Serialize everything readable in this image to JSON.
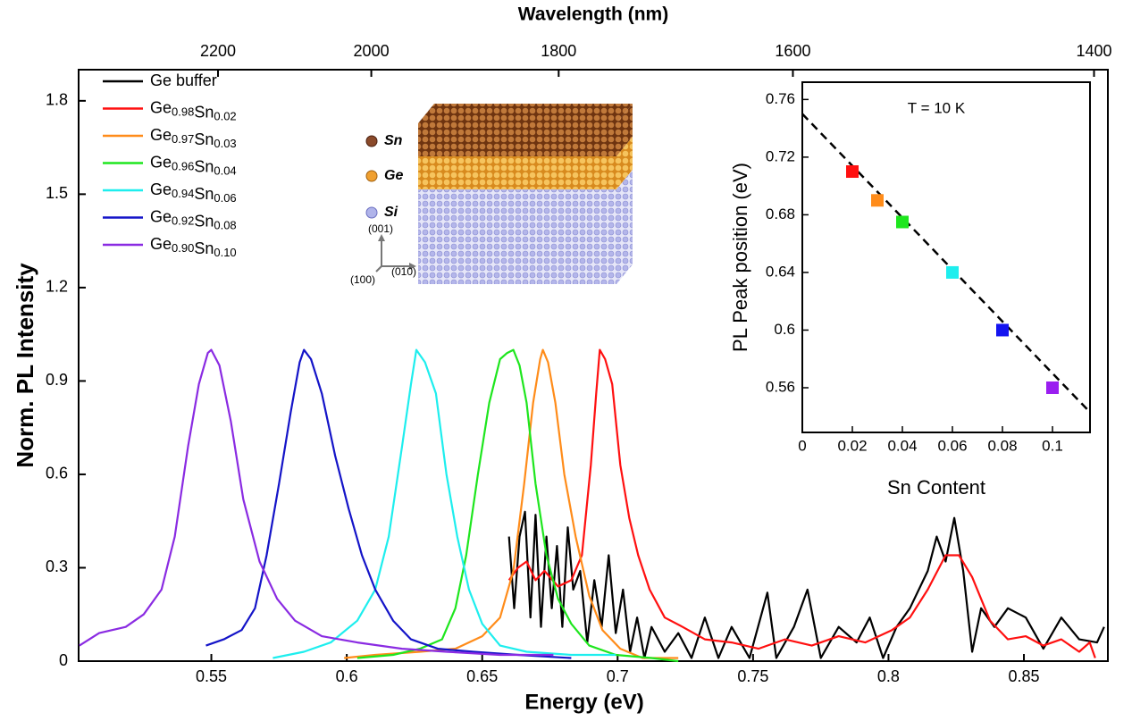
{
  "chart_data": [
    {
      "type": "line",
      "xlabel": "Energy (eV)",
      "ylabel": "Norm. PL Intensity",
      "x2label": "Wavelength (nm)",
      "xlim": [
        0.501,
        0.881
      ],
      "ylim": [
        0,
        1.9
      ],
      "xticks": [
        0.55,
        0.6,
        0.65,
        0.7,
        0.75,
        0.8,
        0.85
      ],
      "yticks": [
        0,
        0.3,
        0.6,
        0.9,
        1.2,
        1.5,
        1.8
      ],
      "x2lim": [
        2420,
        1392
      ],
      "x2scale": "reciprocal",
      "x2ticks": [
        2200,
        2000,
        1800,
        1600,
        1400
      ],
      "legend": "upper left",
      "series": [
        {
          "name": "Ge buffer",
          "color": "#000000",
          "x": [
            0.6599,
            0.6618,
            0.6638,
            0.6658,
            0.6678,
            0.6697,
            0.6717,
            0.6737,
            0.6757,
            0.6776,
            0.6796,
            0.6816,
            0.6836,
            0.6862,
            0.6888,
            0.6914,
            0.6941,
            0.6967,
            0.6993,
            0.702,
            0.7046,
            0.7072,
            0.7099,
            0.7125,
            0.7174,
            0.7224,
            0.7273,
            0.7322,
            0.7372,
            0.7421,
            0.7487,
            0.7553,
            0.7586,
            0.7651,
            0.7701,
            0.775,
            0.7816,
            0.7882,
            0.7931,
            0.798,
            0.803,
            0.8079,
            0.8145,
            0.8178,
            0.8211,
            0.8243,
            0.8276,
            0.8309,
            0.8342,
            0.8391,
            0.8441,
            0.8507,
            0.8572,
            0.8638,
            0.8704,
            0.877,
            0.8796
          ],
          "values": [
            0.4,
            0.17,
            0.4,
            0.48,
            0.14,
            0.47,
            0.11,
            0.4,
            0.17,
            0.37,
            0.11,
            0.43,
            0.23,
            0.29,
            0.06,
            0.26,
            0.11,
            0.34,
            0.09,
            0.23,
            0.03,
            0.14,
            0.01,
            0.11,
            0.03,
            0.09,
            0.01,
            0.14,
            0.01,
            0.11,
            0.01,
            0.22,
            0.01,
            0.11,
            0.23,
            0.01,
            0.11,
            0.06,
            0.14,
            0.01,
            0.11,
            0.17,
            0.29,
            0.4,
            0.32,
            0.46,
            0.29,
            0.03,
            0.17,
            0.11,
            0.17,
            0.14,
            0.04,
            0.14,
            0.07,
            0.06,
            0.11
          ]
        },
        {
          "name": "Ge0.98Sn0.02",
          "color": "#ff1010",
          "x": [
            0.6599,
            0.6632,
            0.6664,
            0.6697,
            0.673,
            0.678,
            0.6829,
            0.6868,
            0.6901,
            0.6921,
            0.6934,
            0.6954,
            0.698,
            0.701,
            0.7043,
            0.7076,
            0.7118,
            0.7174,
            0.724,
            0.7322,
            0.7421,
            0.752,
            0.7618,
            0.7717,
            0.7816,
            0.7914,
            0.8013,
            0.8079,
            0.8145,
            0.8211,
            0.826,
            0.8309,
            0.8375,
            0.8441,
            0.8507,
            0.8572,
            0.8638,
            0.8704,
            0.8743,
            0.8763
          ],
          "values": [
            0.26,
            0.3,
            0.32,
            0.26,
            0.29,
            0.24,
            0.26,
            0.34,
            0.63,
            0.86,
            1.0,
            0.97,
            0.89,
            0.63,
            0.46,
            0.34,
            0.23,
            0.14,
            0.11,
            0.07,
            0.06,
            0.04,
            0.07,
            0.05,
            0.08,
            0.06,
            0.1,
            0.14,
            0.23,
            0.34,
            0.34,
            0.27,
            0.13,
            0.07,
            0.08,
            0.05,
            0.07,
            0.03,
            0.06,
            0.01
          ]
        },
        {
          "name": "Ge0.97Sn0.03",
          "color": "#ff8c1a",
          "x": [
            0.599,
            0.6105,
            0.627,
            0.6401,
            0.65,
            0.6566,
            0.6615,
            0.6655,
            0.6688,
            0.6714,
            0.6724,
            0.6743,
            0.677,
            0.6803,
            0.6845,
            0.6895,
            0.6944,
            0.701,
            0.7092,
            0.7224
          ],
          "values": [
            0.01,
            0.02,
            0.03,
            0.04,
            0.08,
            0.14,
            0.29,
            0.57,
            0.83,
            0.97,
            1.0,
            0.96,
            0.83,
            0.6,
            0.4,
            0.21,
            0.1,
            0.04,
            0.01,
            0.01
          ]
        },
        {
          "name": "Ge0.96Sn0.04",
          "color": "#1ee61e",
          "x": [
            0.6039,
            0.6171,
            0.627,
            0.6352,
            0.6401,
            0.6441,
            0.6484,
            0.6526,
            0.6566,
            0.6592,
            0.6615,
            0.6638,
            0.6664,
            0.6697,
            0.6737,
            0.678,
            0.6829,
            0.6895,
            0.6993,
            0.7125,
            0.7224
          ],
          "values": [
            0.01,
            0.02,
            0.04,
            0.07,
            0.17,
            0.34,
            0.6,
            0.83,
            0.97,
            0.99,
            1.0,
            0.95,
            0.83,
            0.57,
            0.34,
            0.2,
            0.12,
            0.05,
            0.02,
            0.01,
            0.0
          ]
        },
        {
          "name": "Ge0.94Sn0.06",
          "color": "#1eeeee",
          "x": [
            0.5727,
            0.5842,
            0.5941,
            0.6039,
            0.6105,
            0.6155,
            0.6204,
            0.6237,
            0.6257,
            0.6289,
            0.6329,
            0.6368,
            0.6408,
            0.6451,
            0.65,
            0.6566,
            0.6664,
            0.6829,
            0.6993
          ],
          "values": [
            0.01,
            0.03,
            0.06,
            0.13,
            0.23,
            0.4,
            0.69,
            0.89,
            1.0,
            0.96,
            0.86,
            0.6,
            0.4,
            0.23,
            0.12,
            0.05,
            0.03,
            0.02,
            0.02
          ]
        },
        {
          "name": "Ge0.92Sn0.08",
          "color": "#1414c8",
          "x": [
            0.548,
            0.5546,
            0.5612,
            0.5661,
            0.5704,
            0.575,
            0.5793,
            0.5826,
            0.5842,
            0.5868,
            0.5908,
            0.5957,
            0.6007,
            0.6056,
            0.6105,
            0.6171,
            0.6237,
            0.6336,
            0.6467,
            0.6632,
            0.6829
          ],
          "values": [
            0.05,
            0.07,
            0.1,
            0.17,
            0.34,
            0.57,
            0.8,
            0.96,
            1.0,
            0.97,
            0.86,
            0.66,
            0.49,
            0.34,
            0.23,
            0.13,
            0.07,
            0.04,
            0.03,
            0.02,
            0.01
          ]
        },
        {
          "name": "Ge0.90Sn0.10",
          "color": "#8a2be2",
          "x": [
            0.5013,
            0.5086,
            0.5184,
            0.525,
            0.5316,
            0.5365,
            0.5414,
            0.5454,
            0.5487,
            0.55,
            0.553,
            0.5572,
            0.5618,
            0.5678,
            0.5743,
            0.5809,
            0.5908,
            0.6039,
            0.6204,
            0.6368,
            0.6566,
            0.6763
          ],
          "values": [
            0.05,
            0.09,
            0.11,
            0.15,
            0.23,
            0.4,
            0.69,
            0.89,
            0.99,
            1.0,
            0.95,
            0.77,
            0.52,
            0.32,
            0.2,
            0.13,
            0.08,
            0.06,
            0.04,
            0.03,
            0.02,
            0.02
          ]
        }
      ]
    },
    {
      "type": "scatter",
      "annotation": "T = 10 K",
      "xlabel": "Sn Content",
      "ylabel": "PL Peak position (eV)",
      "xlim": [
        0,
        0.115
      ],
      "ylim": [
        0.529,
        0.772
      ],
      "xticks": [
        0,
        0.02,
        0.04,
        0.06,
        0.08,
        0.1
      ],
      "yticks": [
        0.56,
        0.6,
        0.64,
        0.68,
        0.72,
        0.76
      ],
      "x": [
        0.02,
        0.03,
        0.04,
        0.06,
        0.08,
        0.1
      ],
      "values": [
        0.71,
        0.69,
        0.675,
        0.64,
        0.6,
        0.56
      ],
      "colors": [
        "#ff1010",
        "#ff8c1a",
        "#1ee61e",
        "#1eeeee",
        "#1414f0",
        "#9a1ef0"
      ],
      "fit": {
        "x": [
          0,
          0.115
        ],
        "values": [
          0.75,
          0.543
        ]
      }
    }
  ],
  "structure_legend": [
    "Sn",
    "Ge",
    "Si"
  ],
  "crystal_axes": [
    "(001)",
    "(100)",
    "(010)"
  ]
}
